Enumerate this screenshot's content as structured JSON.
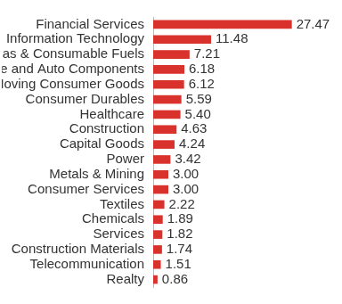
{
  "chart_data": {
    "type": "bar",
    "orientation": "horizontal",
    "categories": [
      "Financial Services",
      "Information Technology",
      "Oil Gas & Consumable Fuels",
      "Automobile and Auto Components",
      "Fast Moving Consumer Goods",
      "Consumer Durables",
      "Healthcare",
      "Construction",
      "Capital Goods",
      "Power",
      "Metals & Mining",
      "Consumer Services",
      "Textiles",
      "Chemicals",
      "Services",
      "Construction Materials",
      "Telecommunication",
      "Realty"
    ],
    "values": [
      27.47,
      11.48,
      7.21,
      6.18,
      6.12,
      5.59,
      5.4,
      4.63,
      4.24,
      3.42,
      3.0,
      3.0,
      2.22,
      1.89,
      1.82,
      1.74,
      1.51,
      0.86
    ],
    "value_labels": [
      "27.47",
      "11.48",
      "7.21",
      "6.18",
      "6.12",
      "5.59",
      "5.40",
      "4.63",
      "4.24",
      "3.42",
      "3.00",
      "3.00",
      "2.22",
      "1.89",
      "1.82",
      "1.74",
      "1.51",
      "0.86"
    ],
    "color": "#d9312b",
    "xlim": [
      0,
      30
    ],
    "grid": false,
    "data_labels": true,
    "tick_labels": "y"
  }
}
